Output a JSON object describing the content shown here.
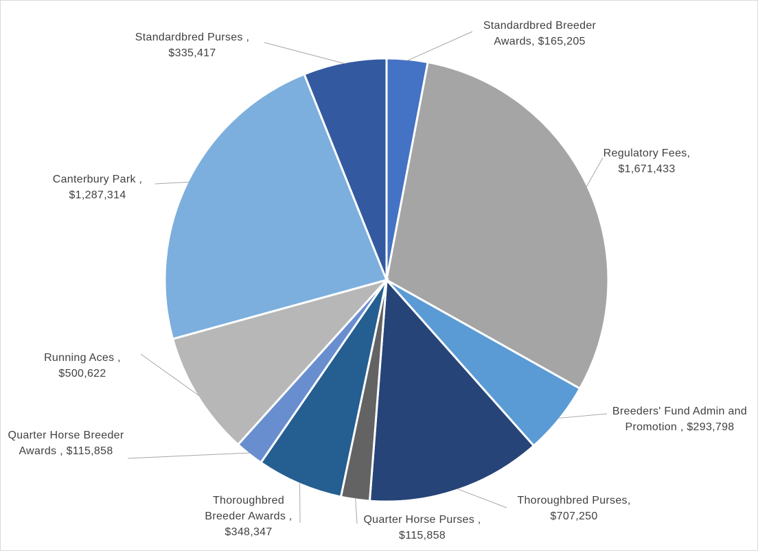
{
  "chart_data": {
    "type": "pie",
    "categories": [
      "Standardbred Breeder Awards,",
      "Regulatory Fees,",
      "Breeders' Fund Admin and Promotion ,",
      "Thoroughbred Purses,",
      "Quarter Horse Purses ,",
      "Thoroughbred Breeder Awards ,",
      "Quarter Horse Breeder Awards ,",
      "Running Aces ,",
      "Canterbury Park ,",
      "Standardbred Purses ,"
    ],
    "values": [
      165205,
      1671433,
      293798,
      707250,
      115858,
      348347,
      115858,
      500622,
      1287314,
      335417
    ],
    "value_labels": [
      "$165,205",
      "$1,671,433",
      "$293,798",
      "$707,250",
      "$115,858",
      "$348,347",
      "$115,858",
      "$500,622",
      "$1,287,314",
      "$335,417"
    ],
    "colors": [
      "#4472c4",
      "#a5a5a5",
      "#5b9bd5",
      "#264478",
      "#636363",
      "#255e91",
      "#698ed0",
      "#b7b7b7",
      "#7cafdd",
      "#335aa1"
    ]
  }
}
